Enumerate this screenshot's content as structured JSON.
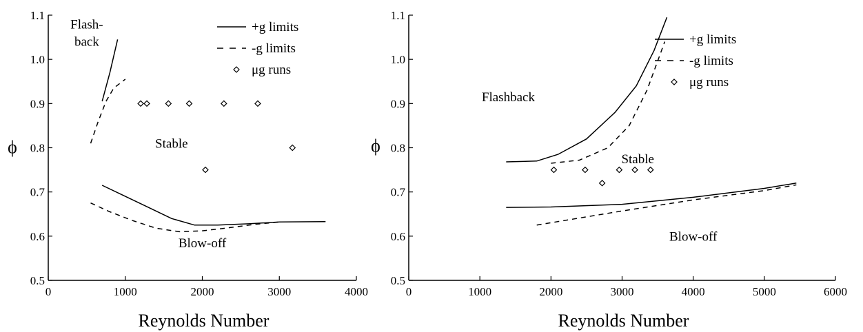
{
  "chart_data": [
    {
      "type": "line",
      "xlabel": "Reynolds Number",
      "ylabel": "ϕ",
      "xlim": [
        0,
        4000
      ],
      "ylim": [
        0.5,
        1.1
      ],
      "xticks": [
        0,
        1000,
        2000,
        3000,
        4000
      ],
      "yticks": [
        0.5,
        0.6,
        0.7,
        0.8,
        0.9,
        1.0,
        1.1
      ],
      "xtick_labels": [
        "0",
        "1000",
        "2000",
        "3000",
        "4000"
      ],
      "ytick_labels": [
        "0.5",
        "0.6",
        "0.7",
        "0.8",
        "0.9",
        "1.0",
        "1.1"
      ],
      "legend": {
        "position": "top-right",
        "entries": [
          {
            "label": "+g limits",
            "style": "solid"
          },
          {
            "label": "-g limits",
            "style": "dashed"
          },
          {
            "label": "μg runs",
            "style": "diamond"
          }
        ]
      },
      "regions": [
        {
          "label_lines": [
            "Flash-",
            "back"
          ],
          "x": 500,
          "y": 1.07
        },
        {
          "label_lines": [
            "Stable"
          ],
          "x": 1600,
          "y": 0.8
        },
        {
          "label_lines": [
            "Blow-off"
          ],
          "x": 2000,
          "y": 0.575
        }
      ],
      "series": [
        {
          "group": "+g",
          "style": "solid",
          "x": [
            700,
            800,
            900
          ],
          "y": [
            0.905,
            0.97,
            1.045
          ]
        },
        {
          "group": "-g",
          "style": "dashed",
          "x": [
            550,
            650,
            750,
            850,
            1000
          ],
          "y": [
            0.81,
            0.86,
            0.905,
            0.935,
            0.955
          ]
        },
        {
          "group": "+g",
          "style": "solid",
          "x": [
            700,
            1000,
            1300,
            1600,
            1900,
            2200,
            2600,
            3000,
            3600
          ],
          "y": [
            0.715,
            0.69,
            0.665,
            0.64,
            0.625,
            0.625,
            0.628,
            0.632,
            0.633
          ]
        },
        {
          "group": "-g",
          "style": "dashed",
          "x": [
            550,
            800,
            1100,
            1400,
            1700,
            2000,
            2300,
            2700,
            3000
          ],
          "y": [
            0.675,
            0.655,
            0.635,
            0.618,
            0.61,
            0.612,
            0.618,
            0.627,
            0.632
          ]
        },
        {
          "group": "μg",
          "style": "diamond",
          "x": [
            1200,
            1280,
            1560,
            1830,
            2280,
            2720,
            2040,
            3170
          ],
          "y": [
            0.9,
            0.9,
            0.9,
            0.9,
            0.9,
            0.9,
            0.75,
            0.8
          ]
        }
      ]
    },
    {
      "type": "line",
      "xlabel": "Reynolds Number",
      "ylabel": "ϕ",
      "xlim": [
        0,
        6000
      ],
      "ylim": [
        0.5,
        1.1
      ],
      "xticks": [
        0,
        1000,
        2000,
        3000,
        4000,
        5000,
        6000
      ],
      "yticks": [
        0.5,
        0.6,
        0.7,
        0.8,
        0.9,
        1.0,
        1.1
      ],
      "xtick_labels": [
        "0",
        "1000",
        "2000",
        "3000",
        "4000",
        "5000",
        "6000"
      ],
      "ytick_labels": [
        "0.5",
        "0.6",
        "0.7",
        "0.8",
        "0.9",
        "1.0",
        "1.1"
      ],
      "legend": {
        "position": "top-right",
        "entries": [
          {
            "label": "+g limits",
            "style": "solid"
          },
          {
            "label": "-g limits",
            "style": "dashed"
          },
          {
            "label": "μg runs",
            "style": "diamond"
          }
        ]
      },
      "regions": [
        {
          "label_lines": [
            "Flashback"
          ],
          "x": 1400,
          "y": 0.905
        },
        {
          "label_lines": [
            "Stable"
          ],
          "x": 3220,
          "y": 0.765
        },
        {
          "label_lines": [
            "Blow-off"
          ],
          "x": 4000,
          "y": 0.59
        }
      ],
      "series": [
        {
          "group": "+g",
          "style": "solid",
          "x": [
            1370,
            1800,
            2100,
            2500,
            2900,
            3200,
            3450,
            3630
          ],
          "y": [
            0.768,
            0.77,
            0.785,
            0.82,
            0.88,
            0.94,
            1.02,
            1.095
          ]
        },
        {
          "group": "-g",
          "style": "dashed",
          "x": [
            2000,
            2400,
            2800,
            3100,
            3350,
            3600
          ],
          "y": [
            0.765,
            0.772,
            0.8,
            0.85,
            0.93,
            1.04
          ]
        },
        {
          "group": "+g",
          "style": "solid",
          "x": [
            1370,
            2000,
            3000,
            4000,
            5000,
            5450
          ],
          "y": [
            0.665,
            0.666,
            0.672,
            0.688,
            0.708,
            0.72
          ]
        },
        {
          "group": "-g",
          "style": "dashed",
          "x": [
            1800,
            3000,
            4000,
            5000,
            5450
          ],
          "y": [
            0.625,
            0.657,
            0.682,
            0.703,
            0.716
          ]
        },
        {
          "group": "μg",
          "style": "diamond",
          "x": [
            2040,
            2480,
            2720,
            2960,
            3180,
            3400
          ],
          "y": [
            0.75,
            0.75,
            0.72,
            0.75,
            0.75,
            0.75
          ]
        }
      ]
    }
  ]
}
